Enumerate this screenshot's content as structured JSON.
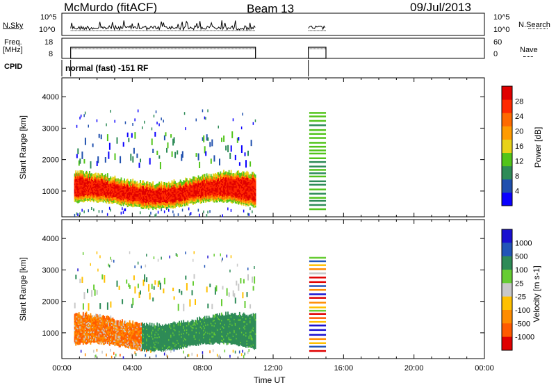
{
  "header": {
    "title": "McMurdo (fitACF)",
    "beam": "Beam 13",
    "date": "09/Jul/2013"
  },
  "summary_panels": {
    "nsky_label": "N.Sky",
    "nsearch_label": "N.Search",
    "nsky_ticks": [
      "10^5",
      "10^0"
    ],
    "nsky_right_ticks": [
      "10^5",
      "10^0"
    ],
    "freq_label_1": "Freq.",
    "freq_label_2": "[MHz]",
    "freq_ticks": [
      "18",
      "8"
    ],
    "nave_label": "Nave",
    "nave_ticks": [
      "60",
      "0"
    ],
    "cpid_label": "CPID",
    "cpid_text": "normal (fast) -151 RF"
  },
  "colors": {
    "power_scale": [
      "#0a00ff",
      "#1f4fae",
      "#2e8b57",
      "#52c41a",
      "#e8d21a",
      "#ff9b00",
      "#ff6a00",
      "#ff2a00",
      "#e00000"
    ],
    "velocity_scale": [
      "#1a10d0",
      "#2255b8",
      "#2e8b57",
      "#66cc33",
      "#c8c8c8",
      "#ffc000",
      "#ff8c00",
      "#ff5a00",
      "#e00000"
    ]
  },
  "chart_data": [
    {
      "type": "heatmap",
      "title": "Power",
      "xlabel": "Time UT",
      "ylabel": "Slant Range [km]",
      "x_ticks": [
        "00:00",
        "04:00",
        "08:00",
        "12:00",
        "16:00",
        "20:00",
        "00:00"
      ],
      "y_ticks": [
        1000,
        2000,
        3000,
        4000
      ],
      "ylim": [
        180,
        4600
      ],
      "colorbar_label": "Power [dB]",
      "colorbar_ticks": [
        "4",
        "8",
        "12",
        "16",
        "20",
        "24",
        "28"
      ],
      "colorbar_range": [
        0,
        32
      ],
      "data_coverage": {
        "segment_1_hours": [
          0.5,
          11.0
        ],
        "segment_2_hours": [
          14.0,
          15.0
        ]
      },
      "main_echo_band_km": [
        500,
        1600
      ],
      "secondary_echo_band_km": [
        1900,
        2900
      ]
    },
    {
      "type": "heatmap",
      "title": "Velocity",
      "xlabel": "Time UT",
      "ylabel": "Slant Range [km]",
      "x_ticks": [
        "00:00",
        "04:00",
        "08:00",
        "12:00",
        "16:00",
        "20:00",
        "00:00"
      ],
      "y_ticks": [
        1000,
        2000,
        3000,
        4000
      ],
      "ylim": [
        180,
        4600
      ],
      "colorbar_label": "Velocity [m s-1]",
      "colorbar_ticks": [
        "1000",
        "500",
        "100",
        "25",
        "-25",
        "-100",
        "-500",
        "-1000"
      ],
      "data_coverage": {
        "segment_1_hours": [
          0.5,
          11.0
        ],
        "segment_2_hours": [
          14.0,
          15.0
        ]
      },
      "main_echo_band_km": [
        500,
        1600
      ],
      "secondary_echo_band_km": [
        1900,
        2900
      ]
    }
  ]
}
